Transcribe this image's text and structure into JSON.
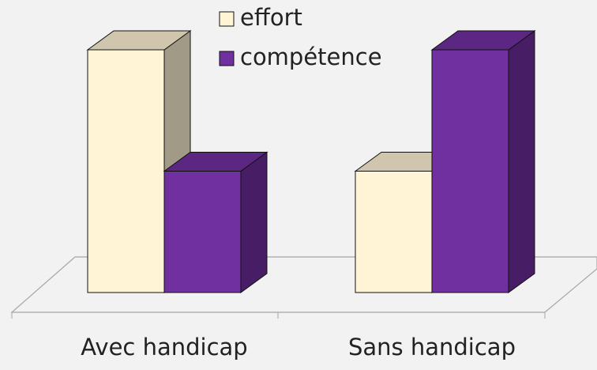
{
  "chart_data": {
    "type": "bar3d",
    "categories": [
      "Avec handicap",
      "Sans handicap"
    ],
    "series": [
      {
        "name": "effort",
        "color": "#fff5d6",
        "values": [
          2,
          1
        ]
      },
      {
        "name": "compétence",
        "color": "#7030a0",
        "values": [
          1,
          2
        ]
      }
    ],
    "legend": "top"
  }
}
